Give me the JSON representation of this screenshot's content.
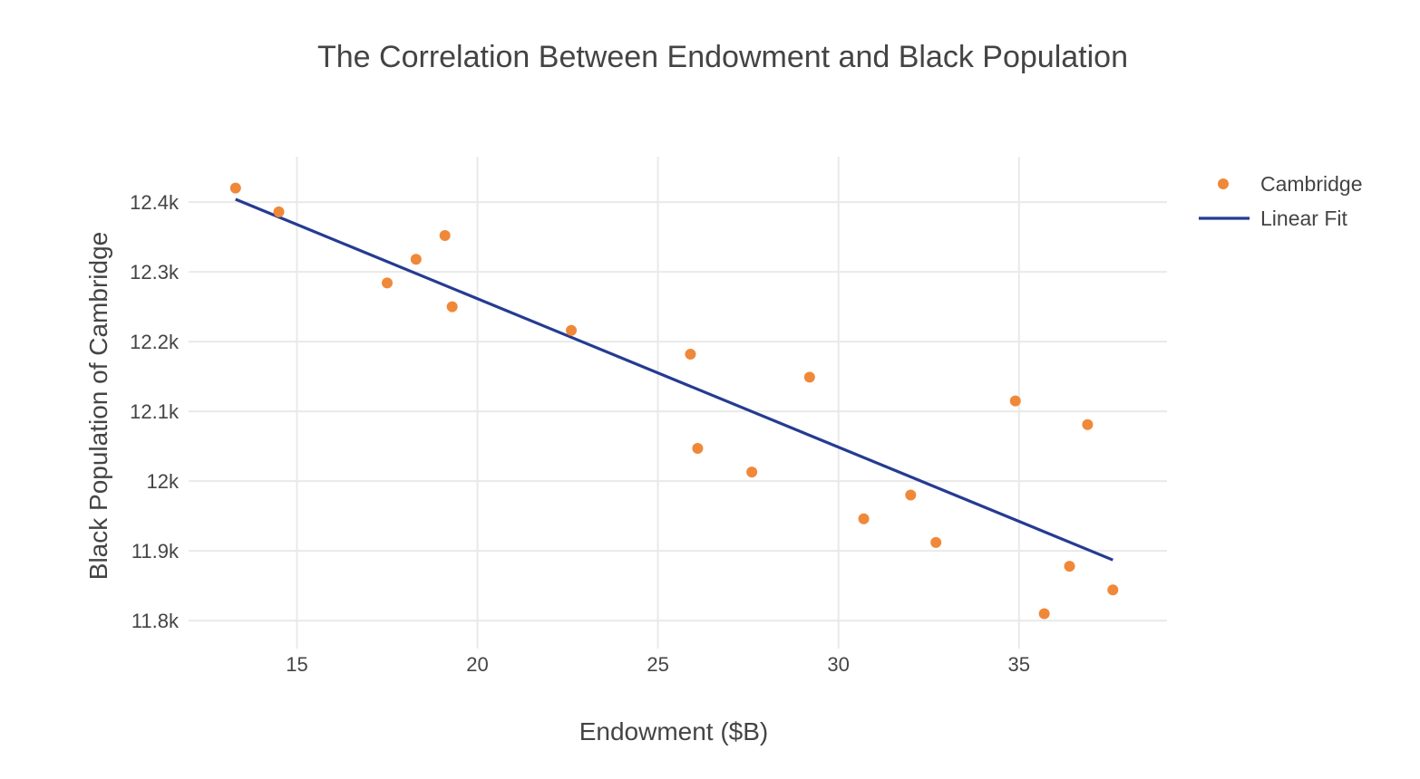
{
  "chart_data": {
    "type": "scatter",
    "title": "The Correlation Between Endowment and Black Population",
    "xlabel": "Endowment ($B)",
    "ylabel": "Black Population of Cambridge",
    "xlim": [
      12,
      39.1
    ],
    "ylim": [
      11760,
      12465
    ],
    "x_ticks": [
      15,
      20,
      25,
      30,
      35
    ],
    "x_tick_labels": [
      "15",
      "20",
      "25",
      "30",
      "35"
    ],
    "y_ticks": [
      11800,
      11900,
      12000,
      12100,
      12200,
      12300,
      12400
    ],
    "y_tick_labels": [
      "11.8k",
      "11.9k",
      "12k",
      "12.1k",
      "12.2k",
      "12.3k",
      "12.4k"
    ],
    "grid": true,
    "legend_position": "top-right",
    "series": [
      {
        "name": "Cambridge",
        "mode": "markers",
        "color": "#f0883a",
        "x": [
          13.3,
          14.5,
          17.5,
          18.3,
          19.1,
          19.3,
          22.6,
          25.9,
          26.1,
          27.6,
          29.2,
          30.7,
          32.0,
          32.7,
          34.9,
          35.7,
          36.4,
          36.9,
          37.6
        ],
        "y": [
          12420,
          12386,
          12284,
          12318,
          12352,
          12250,
          12216,
          12182,
          12047,
          12013,
          12149,
          11946,
          11980,
          11912,
          12115,
          11810,
          11878,
          12081,
          11844
        ]
      },
      {
        "name": "Linear Fit",
        "mode": "lines",
        "color": "#253b92",
        "x": [
          13.3,
          37.6
        ],
        "y": [
          12404,
          11887
        ]
      }
    ]
  }
}
